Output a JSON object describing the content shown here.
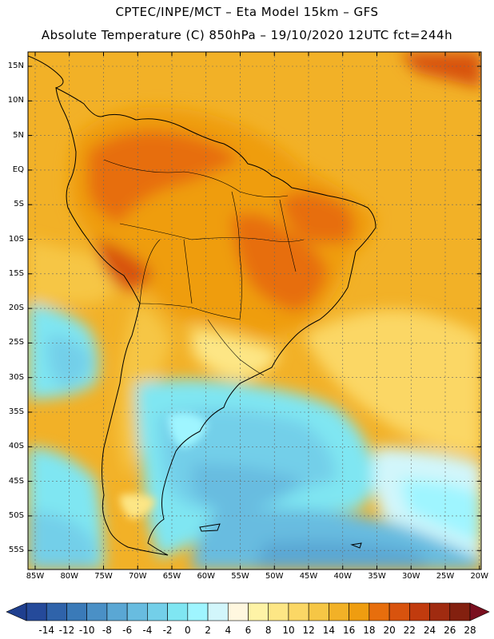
{
  "header": {
    "line1": "CPTEC/INPE/MCT –   Eta Model 15km – GFS",
    "line2": "Absolute Temperature (C) 850hPa – 19/10/2020 12UTC fct=244h"
  },
  "map": {
    "lat_labels": [
      "15N",
      "10N",
      "5N",
      "EQ",
      "5S",
      "10S",
      "15S",
      "20S",
      "25S",
      "30S",
      "35S",
      "40S",
      "45S",
      "50S",
      "55S"
    ],
    "lon_labels": [
      "85W",
      "80W",
      "75W",
      "70W",
      "65W",
      "60W",
      "55W",
      "50W",
      "45W",
      "40W",
      "35W",
      "30W",
      "25W",
      "20W"
    ]
  },
  "colorbar": {
    "labels": [
      "-14",
      "-12",
      "-10",
      "-8",
      "-6",
      "-4",
      "-2",
      "0",
      "2",
      "4",
      "6",
      "8",
      "10",
      "12",
      "14",
      "16",
      "18",
      "20",
      "22",
      "24",
      "26",
      "28"
    ],
    "under_color": "#1f3f8f",
    "over_color": "#7a0f1f",
    "colors": [
      "#254a9a",
      "#2f63aa",
      "#3a7ab8",
      "#4a90c6",
      "#5aa7d4",
      "#68bce0",
      "#73cfe9",
      "#7fe6f2",
      "#9ff5ff",
      "#d2f6fb",
      "#fff7df",
      "#fef3a6",
      "#fde685",
      "#fbd765",
      "#f6c645",
      "#f2b127",
      "#ef9d10",
      "#e76e0d",
      "#d8530e",
      "#c13b0e",
      "#a02b10",
      "#83200f"
    ]
  }
}
